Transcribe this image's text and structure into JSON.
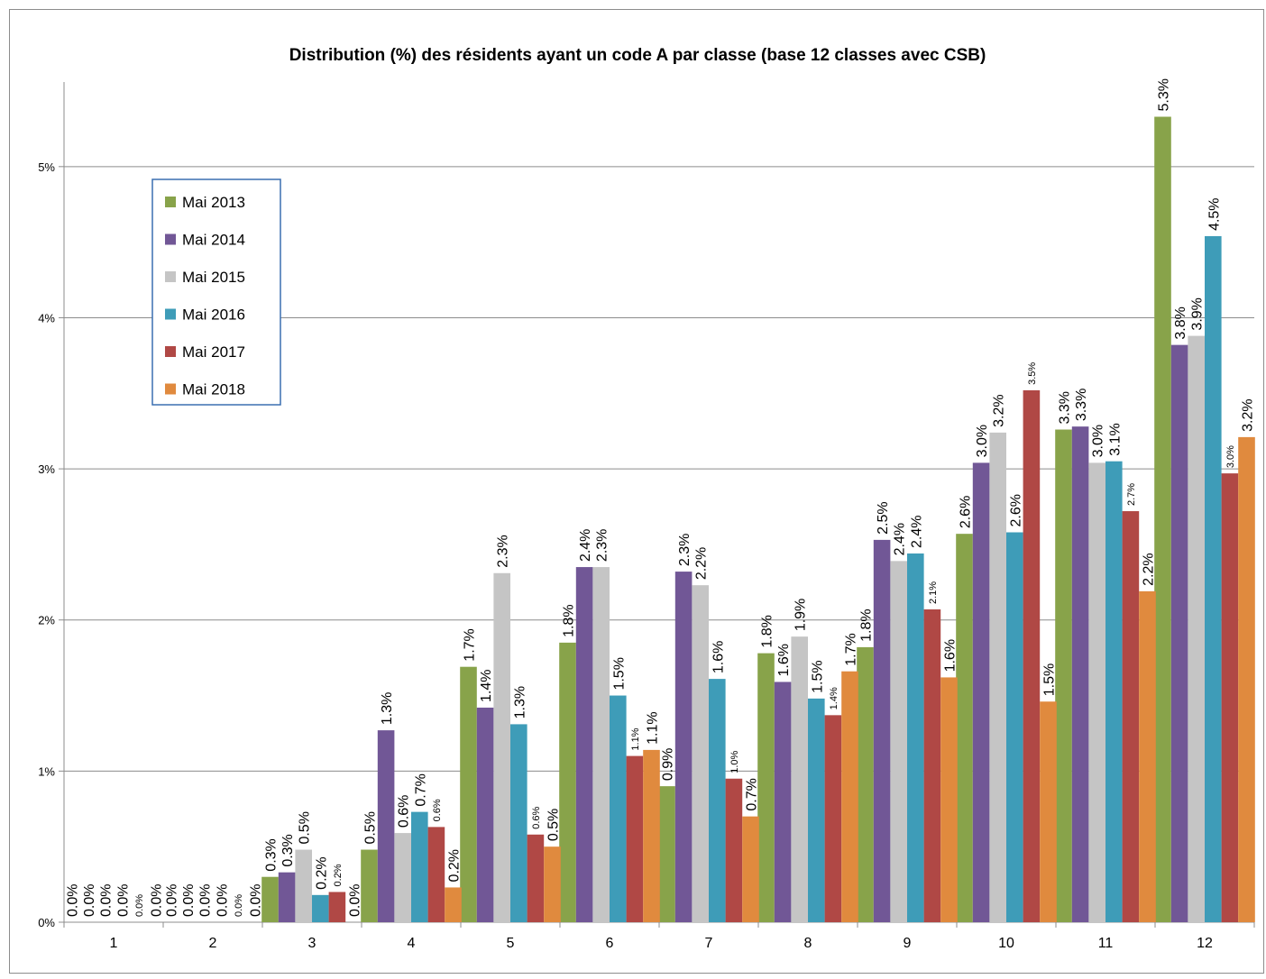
{
  "chart_data": {
    "type": "bar",
    "title": "Distribution (%) des résidents ayant un code A par classe  (base 12 classes avec CSB)",
    "xlabel": "",
    "ylabel": "",
    "categories": [
      "1",
      "2",
      "3",
      "4",
      "5",
      "6",
      "7",
      "8",
      "9",
      "10",
      "11",
      "12"
    ],
    "ylim": [
      0,
      5.5
    ],
    "yticks": [
      0,
      1,
      2,
      3,
      4,
      5
    ],
    "ytick_labels": [
      "0%",
      "1%",
      "2%",
      "3%",
      "4%",
      "5%"
    ],
    "grid": true,
    "legend_position": "top-left",
    "series": [
      {
        "name": "Mai 2013",
        "color": "#88a34a",
        "values": [
          0.0,
          0.0,
          0.3,
          0.48,
          1.69,
          1.85,
          0.9,
          1.78,
          1.82,
          2.57,
          3.26,
          5.33
        ],
        "labels": [
          "0.0%",
          "0.0%",
          "0.3%",
          "0.5%",
          "1.7%",
          "1.8%",
          "0.9%",
          "1.8%",
          "1.8%",
          "2.6%",
          "3.3%",
          "5.3%"
        ]
      },
      {
        "name": "Mai 2014",
        "color": "#715796",
        "values": [
          0.0,
          0.0,
          0.33,
          1.27,
          1.42,
          2.35,
          2.32,
          1.59,
          2.53,
          3.04,
          3.28,
          3.82
        ],
        "labels": [
          "0.0%",
          "0.0%",
          "0.3%",
          "1.3%",
          "1.4%",
          "2.4%",
          "2.3%",
          "1.6%",
          "2.5%",
          "3.0%",
          "3.3%",
          "3.8%"
        ]
      },
      {
        "name": "Mai 2015",
        "color": "#c5c5c5",
        "values": [
          0.0,
          0.0,
          0.48,
          0.59,
          2.31,
          2.35,
          2.23,
          1.89,
          2.39,
          3.24,
          3.04,
          3.88
        ],
        "labels": [
          "0.0%",
          "0.0%",
          "0.5%",
          "0.6%",
          "2.3%",
          "2.3%",
          "2.2%",
          "1.9%",
          "2.4%",
          "3.2%",
          "3.0%",
          "3.9%"
        ]
      },
      {
        "name": "Mai 2016",
        "color": "#3e9cb8",
        "values": [
          0.0,
          0.0,
          0.18,
          0.73,
          1.31,
          1.5,
          1.61,
          1.48,
          2.44,
          2.58,
          3.05,
          4.54
        ],
        "labels": [
          "0.0%",
          "0.0%",
          "0.2%",
          "0.7%",
          "1.3%",
          "1.5%",
          "1.6%",
          "1.5%",
          "2.4%",
          "2.6%",
          "3.1%",
          "4.5%"
        ]
      },
      {
        "name": "Mai 2017",
        "color": "#b04845",
        "values": [
          0.0,
          0.0,
          0.2,
          0.63,
          0.58,
          1.1,
          0.95,
          1.37,
          2.07,
          3.52,
          2.72,
          2.97
        ],
        "labels": [
          "0.0%",
          "0.0%",
          "0.2%",
          "0.6%",
          "0.6%",
          "1.1%",
          "1.0%",
          "1.4%",
          "2.1%",
          "3.5%",
          "2.7%",
          "3.0%"
        ]
      },
      {
        "name": "Mai 2018",
        "color": "#e08a3e",
        "values": [
          0.0,
          0.0,
          0.0,
          0.23,
          0.5,
          1.14,
          0.7,
          1.66,
          1.62,
          1.46,
          2.19,
          3.21
        ],
        "labels": [
          "0.0%",
          "0.0%",
          "0.0%",
          "0.2%",
          "0.5%",
          "1.1%",
          "0.7%",
          "1.7%",
          "1.6%",
          "1.5%",
          "2.2%",
          "3.2%"
        ]
      }
    ]
  }
}
